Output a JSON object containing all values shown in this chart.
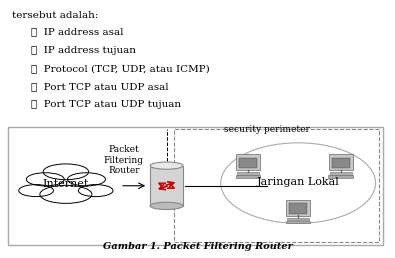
{
  "title": "Gambar 1. Packet Filtering Router",
  "label_internet": "Internet",
  "label_router": "Packet\nFiltering\nRouter",
  "label_jaringan": "Jaringan Lokal",
  "label_security": "security perimeter",
  "top_text_line0": "tersebut adalah:",
  "top_bullets": [
    "IP address asal",
    "IP address tujuan",
    "Protocol (TCP, UDP, atau ICMP)",
    "Port TCP atau UDP asal",
    "Port TCP atau UDP tujuan"
  ],
  "fig_width": 3.95,
  "fig_height": 2.58,
  "dpi": 100
}
